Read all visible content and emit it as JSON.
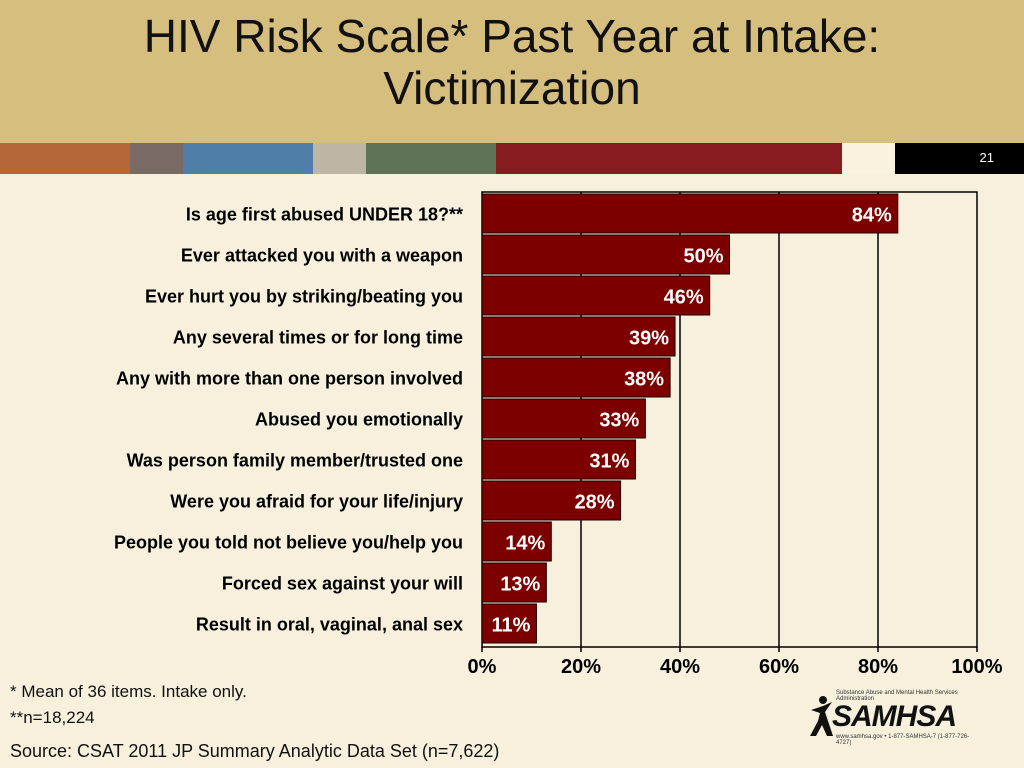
{
  "slide": {
    "title_line1": "HIV Risk Scale* Past Year at Intake:",
    "title_line2": "Victimization",
    "slide_number": "21",
    "stripe_colors": [
      "#b4683a",
      "#7a6a66",
      "#4f7fa8",
      "#bdb6a4",
      "#5f7456",
      "#861c1f",
      "#f8f2de"
    ]
  },
  "chart_data": {
    "type": "bar",
    "orientation": "horizontal",
    "categories": [
      "Is age first abused UNDER 18?**",
      "Ever attacked you with a weapon",
      "Ever hurt you by striking/beating you",
      "Any several times or for long time",
      "Any with more than one person involved",
      "Abused you emotionally",
      "Was person family member/trusted one",
      "Were you afraid for your life/injury",
      "People you told not believe you/help you",
      "Forced sex against your will",
      "Result in oral, vaginal, anal sex"
    ],
    "values": [
      84,
      50,
      46,
      39,
      38,
      33,
      31,
      28,
      14,
      13,
      11
    ],
    "data_labels": [
      "84%",
      "50%",
      "46%",
      "39%",
      "38%",
      "33%",
      "31%",
      "28%",
      "14%",
      "13%",
      "11%"
    ],
    "x_ticks": [
      "0%",
      "20%",
      "40%",
      "60%",
      "80%",
      "100%"
    ],
    "xlim": [
      0,
      100
    ],
    "grid": true,
    "bar_color": "#7d0000"
  },
  "footnotes": {
    "line1": "* Mean of 36 items. Intake only.",
    "line2": "**n=18,224",
    "source": "Source: CSAT 2011 JP Summary Analytic Data Set (n=7,622)"
  },
  "logo": {
    "name": "SAMHSA",
    "tagline": "Substance Abuse and Mental Health Services Administration",
    "contact": "www.samhsa.gov • 1-877-SAMHSA-7 (1-877-726-4727)"
  }
}
